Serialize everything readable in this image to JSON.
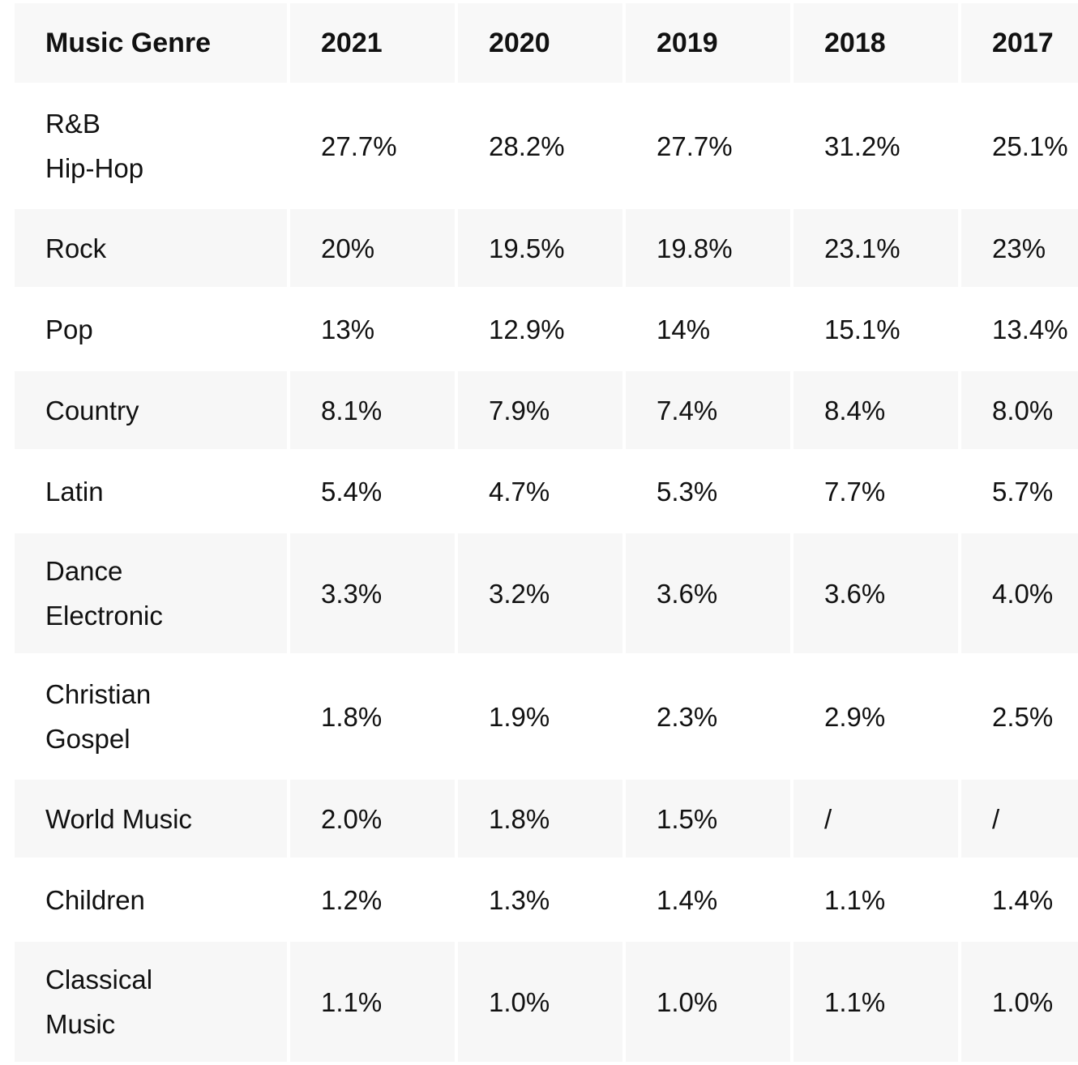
{
  "chart_data": {
    "type": "table",
    "columns": [
      "Music Genre",
      "2021",
      "2020",
      "2019",
      "2018",
      "2017"
    ],
    "rows": [
      {
        "genre": [
          "R&B",
          "Hip-Hop"
        ],
        "values": [
          "27.7%",
          "28.2%",
          "27.7%",
          "31.2%",
          "25.1%"
        ]
      },
      {
        "genre": [
          "Rock"
        ],
        "values": [
          "20%",
          "19.5%",
          "19.8%",
          "23.1%",
          "23%"
        ]
      },
      {
        "genre": [
          "Pop"
        ],
        "values": [
          "13%",
          "12.9%",
          "14%",
          "15.1%",
          "13.4%"
        ]
      },
      {
        "genre": [
          "Country"
        ],
        "values": [
          "8.1%",
          "7.9%",
          "7.4%",
          "8.4%",
          "8.0%"
        ]
      },
      {
        "genre": [
          "Latin"
        ],
        "values": [
          "5.4%",
          "4.7%",
          "5.3%",
          "7.7%",
          "5.7%"
        ]
      },
      {
        "genre": [
          "Dance",
          "Electronic"
        ],
        "values": [
          "3.3%",
          "3.2%",
          "3.6%",
          "3.6%",
          "4.0%"
        ]
      },
      {
        "genre": [
          "Christian",
          "Gospel"
        ],
        "values": [
          "1.8%",
          "1.9%",
          "2.3%",
          "2.9%",
          "2.5%"
        ]
      },
      {
        "genre": [
          "World Music"
        ],
        "values": [
          "2.0%",
          "1.8%",
          "1.5%",
          "/",
          "/"
        ]
      },
      {
        "genre": [
          "Children"
        ],
        "values": [
          "1.2%",
          "1.3%",
          "1.4%",
          "1.1%",
          "1.4%"
        ]
      },
      {
        "genre": [
          "Classical",
          "Music"
        ],
        "values": [
          "1.1%",
          "1.0%",
          "1.0%",
          "1.1%",
          "1.0%"
        ]
      }
    ]
  }
}
